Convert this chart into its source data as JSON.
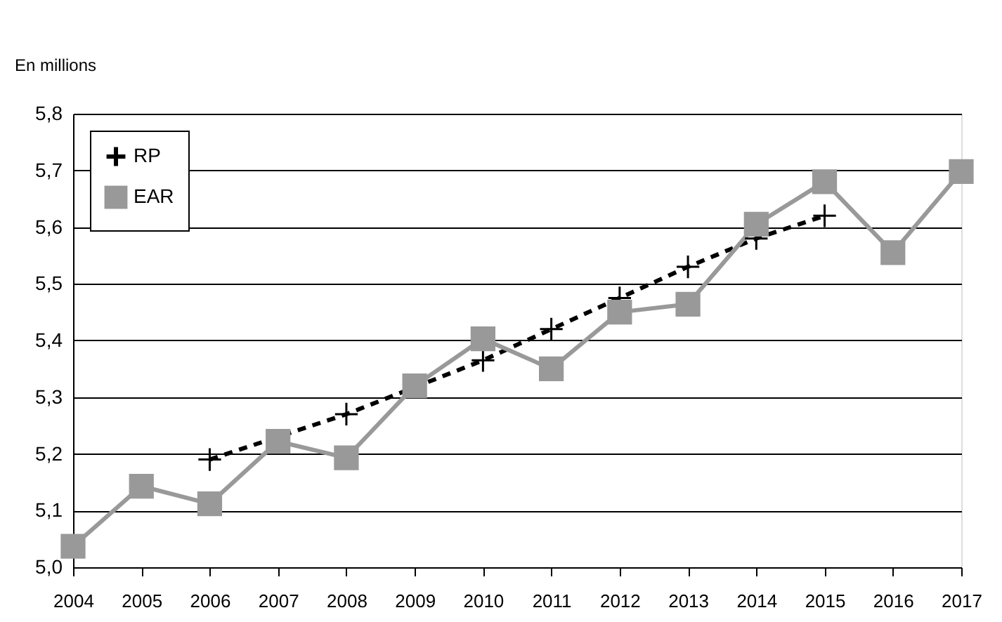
{
  "chart_data": {
    "type": "line",
    "ylabel": "En millions",
    "categories": [
      "2004",
      "2005",
      "2006",
      "2007",
      "2008",
      "2009",
      "2010",
      "2011",
      "2012",
      "2013",
      "2014",
      "2015",
      "2016",
      "2017"
    ],
    "series": [
      {
        "name": "RP",
        "color": "#000000",
        "marker": "cross",
        "line_style": "dashed",
        "values": [
          null,
          null,
          5.19,
          null,
          5.27,
          null,
          5.365,
          5.42,
          5.475,
          5.53,
          5.58,
          5.62,
          null,
          null
        ]
      },
      {
        "name": "EAR",
        "color": "#999999",
        "marker": "square",
        "line_style": "solid",
        "values": [
          5.037,
          5.143,
          5.112,
          5.222,
          5.193,
          5.32,
          5.403,
          5.35,
          5.45,
          5.464,
          5.605,
          5.68,
          5.555,
          5.698
        ]
      }
    ],
    "ylim": [
      5.0,
      5.8
    ],
    "yticks": [
      {
        "value": 5.0,
        "label": "5,0"
      },
      {
        "value": 5.1,
        "label": "5,1"
      },
      {
        "value": 5.2,
        "label": "5,2"
      },
      {
        "value": 5.3,
        "label": "5,3"
      },
      {
        "value": 5.4,
        "label": "5,4"
      },
      {
        "value": 5.5,
        "label": "5,5"
      },
      {
        "value": 5.6,
        "label": "5,6"
      },
      {
        "value": 5.7,
        "label": "5,7"
      },
      {
        "value": 5.8,
        "label": "5,8"
      }
    ],
    "grid": "y",
    "legend": "top left"
  }
}
